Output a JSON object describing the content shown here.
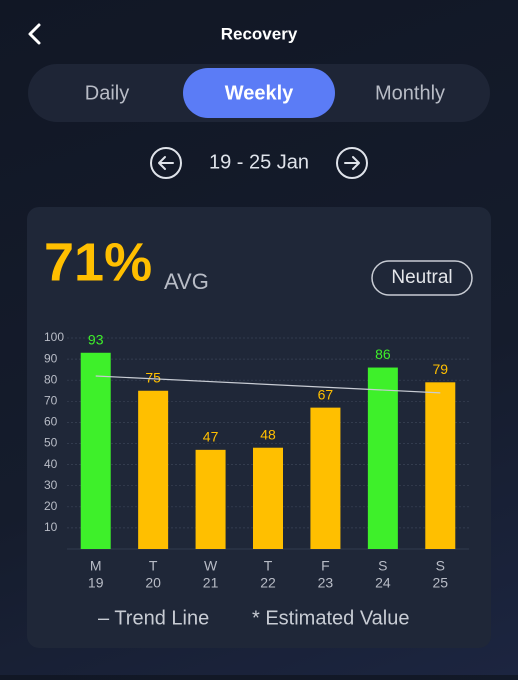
{
  "header": {
    "title": "Recovery"
  },
  "tabs": [
    "Daily",
    "Weekly",
    "Monthly"
  ],
  "active_tab": 1,
  "date_range": "19 - 25 Jan",
  "summary": {
    "value": "71%",
    "label": "AVG",
    "status": "Neutral"
  },
  "chart_data": {
    "type": "bar",
    "categories": [
      "M",
      "T",
      "W",
      "T",
      "F",
      "S",
      "S"
    ],
    "day_numbers": [
      19,
      20,
      21,
      22,
      23,
      24,
      25
    ],
    "values": [
      93,
      75,
      47,
      48,
      67,
      86,
      79
    ],
    "colors": [
      "#3ef02a",
      "#ffbf00",
      "#ffbf00",
      "#ffbf00",
      "#ffbf00",
      "#3ef02a",
      "#ffbf00"
    ],
    "ylim": [
      0,
      100
    ],
    "yticks": [
      10,
      20,
      30,
      40,
      50,
      60,
      70,
      80,
      90,
      100
    ],
    "grid": true,
    "trend_line": [
      82,
      74
    ],
    "legend": [
      "– Trend Line",
      "* Estimated Value"
    ]
  }
}
